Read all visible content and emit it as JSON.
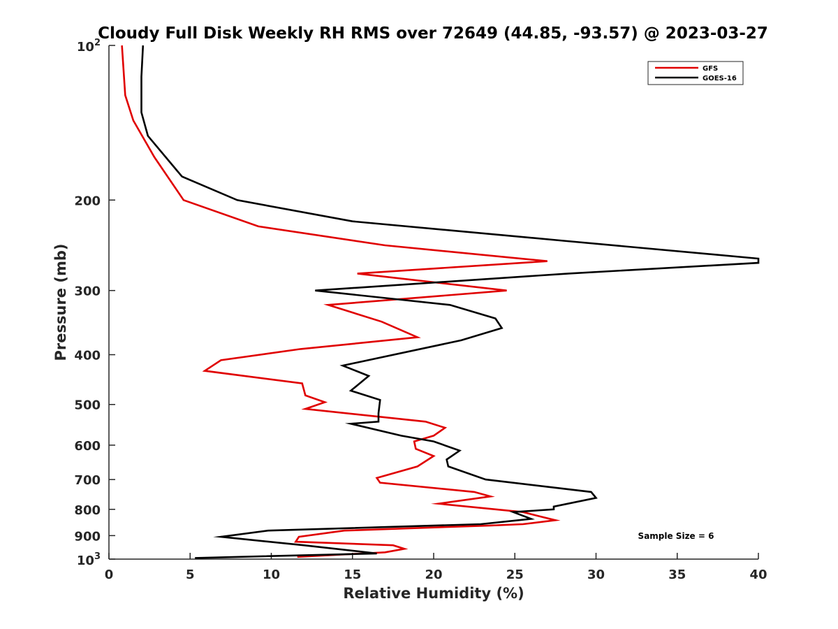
{
  "chart_data": {
    "type": "line",
    "title": "Cloudy Full Disk Weekly RH RMS over 72649 (44.85, -93.57) @ 2023-03-27",
    "xlabel": "Relative Humidity (%)",
    "ylabel": "Pressure (mb)",
    "xlim": [
      0,
      40
    ],
    "ylim": [
      100,
      1000
    ],
    "y_scale": "log",
    "y_reversed": true,
    "grid": false,
    "legend_position": "top-right",
    "x_ticks": [
      0,
      5,
      10,
      15,
      20,
      25,
      30,
      35,
      40
    ],
    "x_tick_labels": [
      "0",
      "5",
      "10",
      "15",
      "20",
      "25",
      "30",
      "35",
      "40"
    ],
    "y_ticks": [
      200,
      300,
      400,
      500,
      600,
      700,
      800,
      900
    ],
    "y_tick_labels": [
      "200",
      "300",
      "400",
      "500",
      "600",
      "700",
      "800",
      "900"
    ],
    "y_end_labels": [
      {
        "value": 100,
        "base": "10",
        "exp": "2"
      },
      {
        "value": 1000,
        "base": "10",
        "exp": "3"
      }
    ],
    "series": [
      {
        "name": "GFS",
        "color": "#e00000",
        "points": [
          [
            0.8,
            100
          ],
          [
            1.0,
            125
          ],
          [
            1.5,
            140
          ],
          [
            2.8,
            165
          ],
          [
            4.6,
            200
          ],
          [
            9.2,
            225
          ],
          [
            17.0,
            245
          ],
          [
            27.0,
            263
          ],
          [
            15.3,
            278
          ],
          [
            24.5,
            300
          ],
          [
            13.5,
            320
          ],
          [
            16.8,
            345
          ],
          [
            19.0,
            370
          ],
          [
            11.8,
            390
          ],
          [
            6.9,
            410
          ],
          [
            5.9,
            430
          ],
          [
            11.9,
            455
          ],
          [
            12.1,
            480
          ],
          [
            13.3,
            495
          ],
          [
            12.1,
            510
          ],
          [
            19.5,
            540
          ],
          [
            20.7,
            555
          ],
          [
            20.0,
            575
          ],
          [
            18.8,
            590
          ],
          [
            18.9,
            610
          ],
          [
            20.0,
            630
          ],
          [
            19.0,
            660
          ],
          [
            16.5,
            695
          ],
          [
            16.7,
            710
          ],
          [
            22.5,
            740
          ],
          [
            23.5,
            755
          ],
          [
            20.3,
            780
          ],
          [
            25.5,
            810
          ],
          [
            26.5,
            825
          ],
          [
            27.5,
            840
          ],
          [
            25.5,
            855
          ],
          [
            23.5,
            860
          ],
          [
            14.5,
            880
          ],
          [
            11.7,
            905
          ],
          [
            11.5,
            925
          ],
          [
            17.5,
            940
          ],
          [
            18.2,
            955
          ],
          [
            17.0,
            970
          ],
          [
            11.6,
            990
          ]
        ]
      },
      {
        "name": "GOES-16",
        "color": "#000000",
        "points": [
          [
            2.1,
            100
          ],
          [
            2.0,
            115
          ],
          [
            2.0,
            135
          ],
          [
            2.4,
            150
          ],
          [
            4.5,
            180
          ],
          [
            7.9,
            200
          ],
          [
            15.0,
            220
          ],
          [
            28.0,
            240
          ],
          [
            40.0,
            260
          ],
          [
            40.0,
            265
          ],
          [
            28.3,
            278
          ],
          [
            12.7,
            300
          ],
          [
            21.0,
            320
          ],
          [
            23.8,
            340
          ],
          [
            24.2,
            355
          ],
          [
            21.7,
            375
          ],
          [
            14.4,
            420
          ],
          [
            16.0,
            440
          ],
          [
            14.9,
            470
          ],
          [
            16.7,
            490
          ],
          [
            16.6,
            520
          ],
          [
            16.6,
            540
          ],
          [
            14.9,
            545
          ],
          [
            18.0,
            575
          ],
          [
            20.0,
            590
          ],
          [
            21.6,
            615
          ],
          [
            20.8,
            640
          ],
          [
            20.9,
            660
          ],
          [
            23.2,
            700
          ],
          [
            29.7,
            740
          ],
          [
            30.0,
            760
          ],
          [
            27.4,
            790
          ],
          [
            27.4,
            800
          ],
          [
            24.9,
            810
          ],
          [
            26.0,
            835
          ],
          [
            22.9,
            855
          ],
          [
            9.8,
            880
          ],
          [
            6.9,
            905
          ],
          [
            12.0,
            940
          ],
          [
            16.5,
            975
          ],
          [
            5.3,
            995
          ]
        ]
      }
    ],
    "annotations": [
      {
        "text": "Sample Size = 6"
      }
    ]
  }
}
